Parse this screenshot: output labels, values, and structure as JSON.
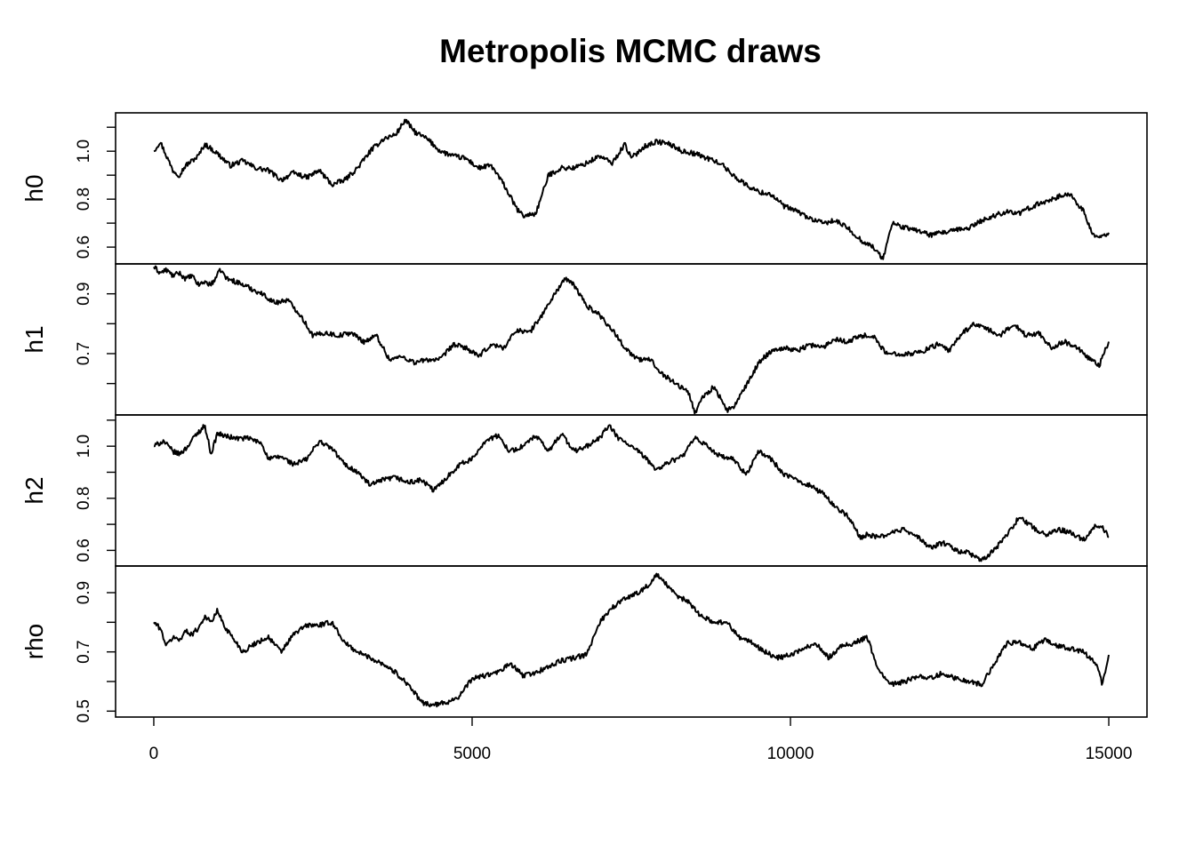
{
  "chart_data": {
    "type": "line",
    "title": "Metropolis MCMC draws",
    "xlabel": "",
    "xlim": [
      -600,
      15600
    ],
    "x_ticks": [
      0,
      5000,
      10000,
      15000
    ],
    "x_tick_labels": [
      "0",
      "5000",
      "10000",
      "15000"
    ],
    "grid": false,
    "n_draws": 15000,
    "series": [
      {
        "name": "h0",
        "ylim": [
          0.53,
          1.16
        ],
        "y_ticks": [
          0.6,
          0.7,
          0.8,
          0.9,
          1.0,
          1.1
        ],
        "y_tick_labels": [
          "0.6",
          "",
          "0.8",
          "",
          "1.0",
          ""
        ],
        "x": [
          0,
          100,
          200,
          300,
          400,
          500,
          600,
          700,
          800,
          1000,
          1200,
          1400,
          1600,
          1800,
          2000,
          2200,
          2400,
          2600,
          2800,
          3000,
          3200,
          3400,
          3600,
          3800,
          3950,
          4100,
          4300,
          4500,
          4700,
          4900,
          5100,
          5300,
          5500,
          5700,
          5800,
          6000,
          6200,
          6400,
          6600,
          6800,
          7000,
          7200,
          7400,
          7500,
          7700,
          7900,
          8100,
          8300,
          8500,
          8700,
          8900,
          9100,
          9300,
          9500,
          9700,
          9900,
          10100,
          10300,
          10500,
          10700,
          10900,
          11100,
          11300,
          11450,
          11600,
          11800,
          12000,
          12200,
          12400,
          12600,
          12800,
          13000,
          13200,
          13400,
          13600,
          13800,
          14000,
          14200,
          14400,
          14600,
          14750,
          14900,
          15000
        ],
        "values": [
          1.0,
          1.04,
          0.98,
          0.92,
          0.9,
          0.94,
          0.96,
          0.98,
          1.03,
          0.99,
          0.94,
          0.96,
          0.93,
          0.92,
          0.88,
          0.91,
          0.89,
          0.92,
          0.86,
          0.88,
          0.93,
          1.0,
          1.05,
          1.07,
          1.13,
          1.08,
          1.05,
          1.0,
          0.98,
          0.97,
          0.93,
          0.94,
          0.86,
          0.76,
          0.73,
          0.74,
          0.9,
          0.93,
          0.93,
          0.95,
          0.98,
          0.95,
          1.03,
          0.97,
          1.02,
          1.04,
          1.03,
          1.0,
          0.99,
          0.97,
          0.95,
          0.9,
          0.86,
          0.83,
          0.82,
          0.77,
          0.75,
          0.72,
          0.7,
          0.71,
          0.68,
          0.63,
          0.6,
          0.55,
          0.7,
          0.68,
          0.67,
          0.65,
          0.66,
          0.67,
          0.68,
          0.71,
          0.73,
          0.75,
          0.74,
          0.77,
          0.79,
          0.81,
          0.82,
          0.75,
          0.65,
          0.64,
          0.66
        ]
      },
      {
        "name": "h1",
        "ylim": [
          0.495,
          1.0
        ],
        "y_ticks": [
          0.5,
          0.6,
          0.7,
          0.8,
          0.9
        ],
        "y_tick_labels": [
          "0.5",
          "",
          "0.7",
          "",
          "0.9"
        ],
        "x": [
          0,
          100,
          200,
          300,
          400,
          500,
          600,
          700,
          800,
          900,
          1050,
          1150,
          1300,
          1500,
          1700,
          1900,
          2100,
          2300,
          2500,
          2700,
          2900,
          3100,
          3300,
          3500,
          3700,
          3900,
          4100,
          4300,
          4500,
          4700,
          4900,
          5100,
          5300,
          5500,
          5700,
          5900,
          6100,
          6300,
          6450,
          6600,
          6800,
          7000,
          7200,
          7400,
          7600,
          7800,
          8000,
          8200,
          8400,
          8500,
          8600,
          8800,
          9000,
          9100,
          9300,
          9500,
          9700,
          9900,
          10100,
          10300,
          10500,
          10700,
          10900,
          11100,
          11300,
          11500,
          11700,
          11900,
          12100,
          12300,
          12500,
          12700,
          12900,
          13100,
          13300,
          13500,
          13700,
          13900,
          14100,
          14300,
          14500,
          14700,
          14850,
          15000
        ],
        "values": [
          0.99,
          0.97,
          0.98,
          0.96,
          0.97,
          0.95,
          0.96,
          0.93,
          0.94,
          0.93,
          0.98,
          0.95,
          0.94,
          0.92,
          0.9,
          0.87,
          0.88,
          0.83,
          0.76,
          0.77,
          0.76,
          0.77,
          0.74,
          0.76,
          0.68,
          0.69,
          0.67,
          0.68,
          0.68,
          0.73,
          0.72,
          0.69,
          0.73,
          0.72,
          0.78,
          0.77,
          0.83,
          0.9,
          0.95,
          0.93,
          0.86,
          0.83,
          0.78,
          0.72,
          0.68,
          0.68,
          0.63,
          0.6,
          0.57,
          0.5,
          0.55,
          0.59,
          0.51,
          0.52,
          0.59,
          0.67,
          0.71,
          0.72,
          0.71,
          0.73,
          0.72,
          0.75,
          0.74,
          0.76,
          0.76,
          0.7,
          0.7,
          0.7,
          0.71,
          0.73,
          0.71,
          0.77,
          0.8,
          0.78,
          0.76,
          0.8,
          0.76,
          0.77,
          0.72,
          0.74,
          0.72,
          0.68,
          0.66,
          0.74
        ]
      },
      {
        "name": "h2",
        "ylim": [
          0.54,
          1.12
        ],
        "y_ticks": [
          0.6,
          0.7,
          0.8,
          0.9,
          1.0,
          1.1
        ],
        "y_tick_labels": [
          "0.6",
          "",
          "0.8",
          "",
          "1.0",
          ""
        ],
        "x": [
          0,
          150,
          300,
          400,
          500,
          650,
          800,
          900,
          1000,
          1100,
          1300,
          1500,
          1700,
          1800,
          2000,
          2200,
          2400,
          2600,
          2800,
          3000,
          3200,
          3400,
          3600,
          3800,
          4000,
          4200,
          4400,
          4600,
          4800,
          5000,
          5200,
          5400,
          5600,
          5800,
          6000,
          6200,
          6400,
          6600,
          6800,
          7000,
          7150,
          7300,
          7500,
          7700,
          7900,
          8100,
          8300,
          8500,
          8700,
          8900,
          9100,
          9300,
          9500,
          9700,
          9900,
          10100,
          10300,
          10500,
          10700,
          10900,
          11100,
          11200,
          11400,
          11600,
          11800,
          12000,
          12200,
          12400,
          12600,
          12800,
          13000,
          13200,
          13400,
          13600,
          13800,
          14000,
          14200,
          14400,
          14600,
          14800,
          14900,
          15000
        ],
        "values": [
          1.0,
          1.02,
          0.98,
          0.97,
          0.99,
          1.04,
          1.08,
          0.97,
          1.05,
          1.04,
          1.03,
          1.03,
          1.01,
          0.95,
          0.96,
          0.93,
          0.95,
          1.02,
          0.99,
          0.93,
          0.9,
          0.85,
          0.87,
          0.88,
          0.86,
          0.87,
          0.83,
          0.88,
          0.93,
          0.95,
          1.02,
          1.04,
          0.98,
          1.0,
          1.04,
          0.98,
          1.05,
          0.98,
          1.0,
          1.03,
          1.08,
          1.03,
          1.0,
          0.96,
          0.91,
          0.94,
          0.96,
          1.03,
          1.0,
          0.96,
          0.95,
          0.89,
          0.98,
          0.95,
          0.89,
          0.87,
          0.85,
          0.82,
          0.77,
          0.73,
          0.65,
          0.66,
          0.65,
          0.67,
          0.68,
          0.65,
          0.61,
          0.63,
          0.6,
          0.59,
          0.56,
          0.6,
          0.66,
          0.73,
          0.69,
          0.66,
          0.68,
          0.67,
          0.64,
          0.7,
          0.69,
          0.65
        ]
      },
      {
        "name": "rho",
        "ylim": [
          0.48,
          0.99
        ],
        "y_ticks": [
          0.5,
          0.6,
          0.7,
          0.8,
          0.9
        ],
        "y_tick_labels": [
          "0.5",
          "",
          "0.7",
          "",
          "0.9"
        ],
        "x": [
          0,
          100,
          200,
          300,
          400,
          500,
          600,
          700,
          800,
          900,
          1000,
          1100,
          1200,
          1400,
          1600,
          1800,
          2000,
          2200,
          2400,
          2600,
          2800,
          3000,
          3200,
          3400,
          3600,
          3800,
          4000,
          4200,
          4400,
          4600,
          4800,
          5000,
          5200,
          5400,
          5600,
          5800,
          6000,
          6200,
          6400,
          6600,
          6800,
          7000,
          7200,
          7400,
          7600,
          7800,
          7900,
          8000,
          8200,
          8400,
          8600,
          8800,
          9000,
          9200,
          9400,
          9600,
          9800,
          10000,
          10200,
          10400,
          10600,
          10800,
          11000,
          11200,
          11400,
          11600,
          11800,
          12000,
          12200,
          12400,
          12600,
          12800,
          13000,
          13200,
          13400,
          13600,
          13800,
          14000,
          14200,
          14400,
          14600,
          14800,
          14900,
          15000
        ],
        "values": [
          0.8,
          0.78,
          0.72,
          0.75,
          0.74,
          0.77,
          0.76,
          0.78,
          0.82,
          0.8,
          0.84,
          0.79,
          0.76,
          0.7,
          0.73,
          0.75,
          0.7,
          0.76,
          0.79,
          0.79,
          0.8,
          0.73,
          0.7,
          0.68,
          0.66,
          0.63,
          0.59,
          0.53,
          0.52,
          0.53,
          0.55,
          0.61,
          0.62,
          0.63,
          0.66,
          0.62,
          0.63,
          0.65,
          0.67,
          0.68,
          0.69,
          0.8,
          0.85,
          0.88,
          0.9,
          0.93,
          0.96,
          0.94,
          0.89,
          0.87,
          0.82,
          0.8,
          0.8,
          0.75,
          0.73,
          0.7,
          0.68,
          0.69,
          0.71,
          0.73,
          0.68,
          0.72,
          0.73,
          0.75,
          0.63,
          0.59,
          0.6,
          0.62,
          0.61,
          0.63,
          0.61,
          0.6,
          0.59,
          0.66,
          0.73,
          0.73,
          0.71,
          0.74,
          0.72,
          0.71,
          0.7,
          0.66,
          0.59,
          0.69
        ]
      }
    ]
  }
}
